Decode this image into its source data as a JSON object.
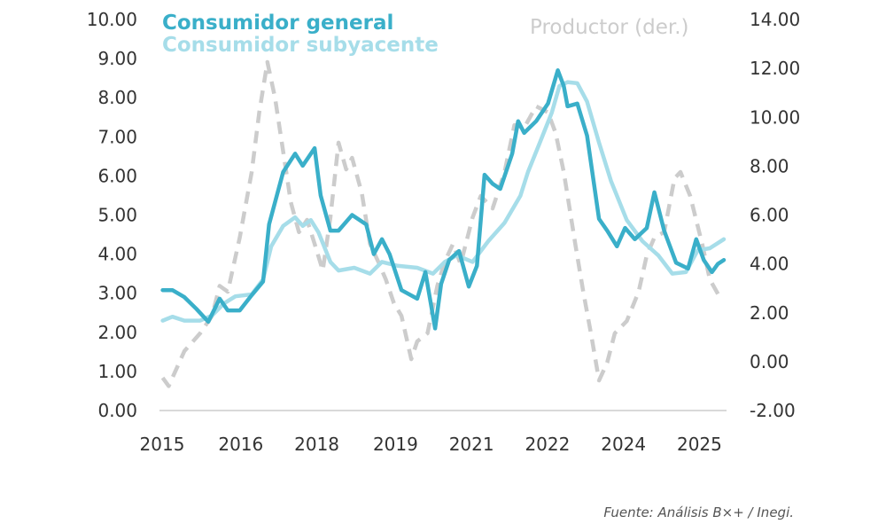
{
  "chart_data": {
    "type": "line",
    "title": "",
    "legend": {
      "placement": "top"
    },
    "grid": false,
    "left_axis": {
      "ylim": [
        0,
        10
      ],
      "ticks": [
        "0.00",
        "1.00",
        "2.00",
        "3.00",
        "4.00",
        "5.00",
        "6.00",
        "7.00",
        "8.00",
        "9.00",
        "10.00"
      ]
    },
    "right_axis": {
      "ylim": [
        -2,
        14
      ],
      "ticks": [
        "-2.00",
        "0.00",
        "2.00",
        "4.00",
        "6.00",
        "8.00",
        "10.00",
        "12.00",
        "14.00"
      ]
    },
    "xlim": [
      2015.0,
      2025.35
    ],
    "x_ticks": [
      {
        "label": "2015",
        "x": 2015.0
      },
      {
        "label": "2016",
        "x": 2016.45
      },
      {
        "label": "2018",
        "x": 2017.85
      },
      {
        "label": "2019",
        "x": 2019.3
      },
      {
        "label": "2021",
        "x": 2020.7
      },
      {
        "label": "2022",
        "x": 2022.1
      },
      {
        "label": "2024",
        "x": 2023.5
      },
      {
        "label": "2025",
        "x": 2024.9
      }
    ],
    "series": [
      {
        "name": "Consumidor general",
        "axis": "left",
        "color": "#3aafc9",
        "style": "solid",
        "x": [
          2015.01,
          2015.19,
          2015.41,
          2015.63,
          2015.85,
          2016.06,
          2016.21,
          2016.43,
          2016.65,
          2016.86,
          2016.97,
          2017.23,
          2017.45,
          2017.59,
          2017.81,
          2017.92,
          2018.1,
          2018.25,
          2018.5,
          2018.76,
          2018.9,
          2019.05,
          2019.19,
          2019.41,
          2019.7,
          2019.85,
          2020.03,
          2020.14,
          2020.29,
          2020.47,
          2020.65,
          2020.8,
          2020.94,
          2021.09,
          2021.23,
          2021.45,
          2021.56,
          2021.67,
          2021.89,
          2022.11,
          2022.29,
          2022.4,
          2022.47,
          2022.65,
          2022.83,
          2023.05,
          2023.2,
          2023.38,
          2023.53,
          2023.71,
          2023.93,
          2024.07,
          2024.25,
          2024.47,
          2024.69,
          2024.84,
          2024.98,
          2025.13,
          2025.24,
          2025.35
        ],
        "y": [
          3.08,
          3.08,
          2.9,
          2.6,
          2.27,
          2.86,
          2.56,
          2.56,
          2.95,
          3.3,
          4.76,
          6.1,
          6.57,
          6.26,
          6.71,
          5.5,
          4.6,
          4.6,
          5.0,
          4.76,
          4.0,
          4.38,
          4.0,
          3.08,
          2.86,
          3.54,
          2.1,
          3.24,
          3.85,
          4.08,
          3.17,
          3.7,
          6.03,
          5.8,
          5.67,
          6.57,
          7.4,
          7.1,
          7.4,
          7.85,
          8.7,
          8.3,
          7.78,
          7.85,
          7.03,
          4.9,
          4.6,
          4.2,
          4.67,
          4.38,
          4.67,
          5.58,
          4.6,
          3.78,
          3.63,
          4.38,
          3.85,
          3.54,
          3.75,
          3.85
        ]
      },
      {
        "name": "Consumidor subyacente",
        "axis": "left",
        "color": "#a6dde9",
        "style": "solid",
        "x": [
          2015.01,
          2015.19,
          2015.41,
          2015.7,
          2015.92,
          2016.14,
          2016.35,
          2016.65,
          2016.86,
          2017.01,
          2017.23,
          2017.45,
          2017.59,
          2017.74,
          2017.88,
          2018.1,
          2018.25,
          2018.54,
          2018.83,
          2019.05,
          2019.34,
          2019.7,
          2019.99,
          2020.21,
          2020.43,
          2020.72,
          2021.01,
          2021.31,
          2021.6,
          2021.74,
          2021.96,
          2022.18,
          2022.32,
          2022.47,
          2022.65,
          2022.83,
          2023.05,
          2023.27,
          2023.56,
          2023.85,
          2024.14,
          2024.4,
          2024.65,
          2024.87,
          2025.09,
          2025.35
        ],
        "y": [
          2.3,
          2.4,
          2.3,
          2.3,
          2.43,
          2.74,
          2.92,
          2.97,
          3.35,
          4.2,
          4.72,
          4.94,
          4.72,
          4.87,
          4.56,
          3.8,
          3.58,
          3.65,
          3.5,
          3.8,
          3.7,
          3.65,
          3.5,
          3.8,
          3.97,
          3.8,
          4.33,
          4.8,
          5.49,
          6.1,
          6.85,
          7.62,
          8.3,
          8.4,
          8.37,
          7.9,
          6.85,
          5.87,
          4.87,
          4.33,
          3.97,
          3.5,
          3.54,
          4.1,
          4.15,
          4.38
        ]
      },
      {
        "name": "Productor (der.)",
        "axis": "right",
        "color": "#cccccc",
        "style": "dashed",
        "x": [
          2015.01,
          2015.12,
          2015.41,
          2015.7,
          2015.92,
          2016.06,
          2016.21,
          2016.43,
          2016.65,
          2016.79,
          2016.94,
          2017.08,
          2017.23,
          2017.37,
          2017.52,
          2017.67,
          2017.81,
          2017.96,
          2018.1,
          2018.25,
          2018.39,
          2018.5,
          2018.68,
          2018.83,
          2018.98,
          2019.12,
          2019.27,
          2019.41,
          2019.59,
          2019.7,
          2019.89,
          2020.07,
          2020.21,
          2020.36,
          2020.5,
          2020.72,
          2020.87,
          2021.09,
          2021.31,
          2021.49,
          2021.67,
          2021.89,
          2022.11,
          2022.25,
          2022.4,
          2022.62,
          2022.76,
          2022.91,
          2023.05,
          2023.2,
          2023.34,
          2023.56,
          2023.78,
          2023.93,
          2024.07,
          2024.25,
          2024.44,
          2024.55,
          2024.73,
          2024.95,
          2025.09,
          2025.31
        ],
        "y": [
          -0.66,
          -1.0,
          0.43,
          1.16,
          1.88,
          3.1,
          2.86,
          5.08,
          7.76,
          10.2,
          12.26,
          10.8,
          8.6,
          6.53,
          5.3,
          5.8,
          4.82,
          3.73,
          5.9,
          8.96,
          7.87,
          8.34,
          6.89,
          4.82,
          4.1,
          3.37,
          2.39,
          1.88,
          0.1,
          0.83,
          1.16,
          3.1,
          4.1,
          4.82,
          3.99,
          5.9,
          6.78,
          6.27,
          7.76,
          9.68,
          9.57,
          10.45,
          10.2,
          9.36,
          7.76,
          4.7,
          2.86,
          1.05,
          -0.77,
          -0.04,
          1.16,
          1.66,
          2.86,
          4.35,
          5.08,
          5.3,
          7.5,
          7.76,
          6.78,
          4.82,
          3.37,
          2.5
        ]
      }
    ]
  },
  "footer": {
    "source": "Fuente: Análisis B×+ /  Inegi."
  }
}
